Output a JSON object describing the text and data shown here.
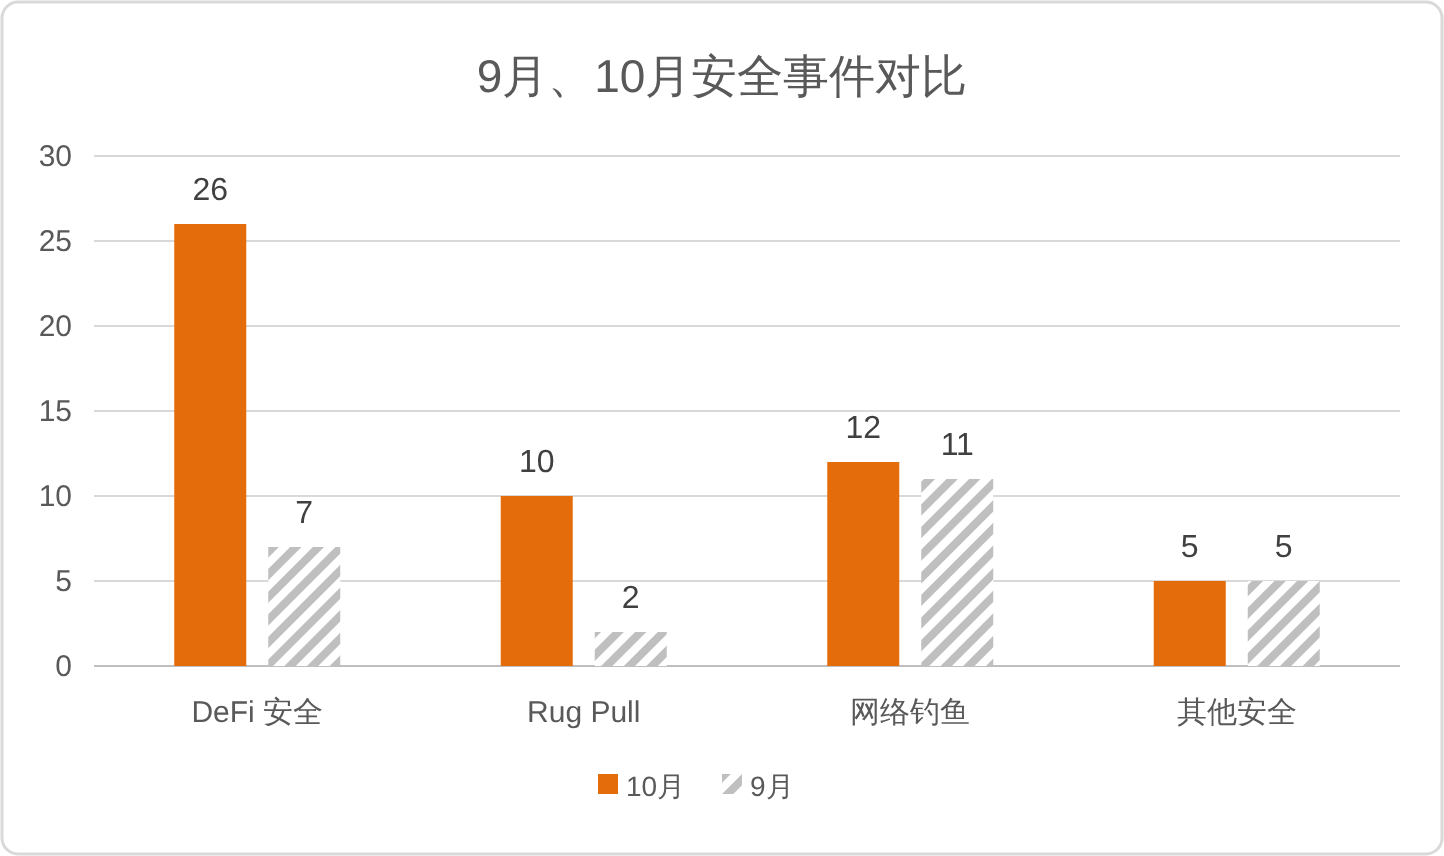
{
  "chart_data": {
    "type": "bar",
    "title": "9月、10月安全事件对比",
    "categories": [
      "DeFi 安全",
      "Rug Pull",
      "网络钓鱼",
      "其他安全"
    ],
    "series": [
      {
        "name": "10月",
        "color": "#e46c0a",
        "values": [
          26,
          10,
          12,
          5
        ]
      },
      {
        "name": "9月",
        "color": "#bfbfbf",
        "values": [
          7,
          2,
          11,
          5
        ]
      }
    ],
    "ylim": [
      0,
      30
    ],
    "yticks": [
      0,
      5,
      10,
      15,
      20,
      25,
      30
    ],
    "grid": "y",
    "legend": "bottom",
    "data_labels": true
  }
}
